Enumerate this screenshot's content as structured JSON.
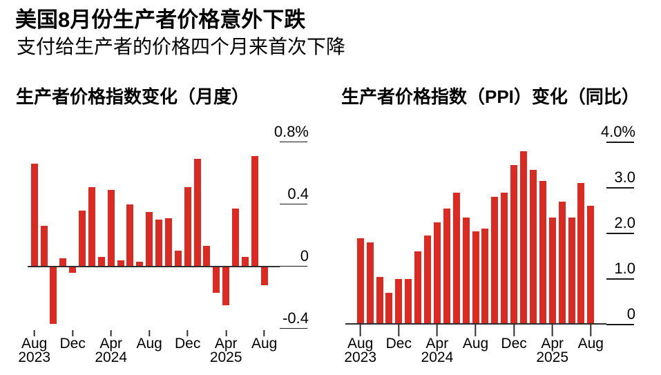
{
  "header": {
    "title": "美国8月份生产者价格意外下跌",
    "subtitle": "支付给生产者的价格四个月来首次下降"
  },
  "colors": {
    "bar": "#db2a21",
    "axis": "#2e2e2e",
    "text": "#000000",
    "background": "#ffffff"
  },
  "chart_data": [
    {
      "type": "bar",
      "title": "生产者价格指数变化（月度）",
      "unit": "%",
      "categories": [
        "Aug 2023",
        "Sep 2023",
        "Oct 2023",
        "Nov 2023",
        "Dec 2023",
        "Jan 2024",
        "Feb 2024",
        "Mar 2024",
        "Apr 2024",
        "May 2024",
        "Jun 2024",
        "Jul 2024",
        "Aug 2024",
        "Sep 2024",
        "Oct 2024",
        "Nov 2024",
        "Dec 2024",
        "Jan 2025",
        "Feb 2025",
        "Mar 2025",
        "Apr 2025",
        "May 2025",
        "Jun 2025",
        "Jul 2025",
        "Aug 2025"
      ],
      "values": [
        0.66,
        0.26,
        -0.37,
        0.05,
        -0.04,
        0.36,
        0.51,
        0.06,
        0.49,
        0.04,
        0.4,
        0.03,
        0.35,
        0.3,
        0.31,
        0.1,
        0.51,
        0.69,
        0.13,
        -0.17,
        -0.25,
        0.37,
        0.06,
        0.71,
        -0.12
      ],
      "ylim": [
        -0.42,
        0.96
      ],
      "yticks": [
        {
          "value": 0.8,
          "label": "0.8%"
        },
        {
          "value": 0.4,
          "label": "0.4"
        },
        {
          "value": 0,
          "label": "0"
        },
        {
          "value": -0.4,
          "label": "-0.4"
        }
      ],
      "xticks": [
        {
          "index": 0,
          "label": "Aug",
          "year": "2023"
        },
        {
          "index": 4,
          "label": "Dec"
        },
        {
          "index": 8,
          "label": "Apr",
          "year": "2024"
        },
        {
          "index": 12,
          "label": "Aug"
        },
        {
          "index": 16,
          "label": "Dec"
        },
        {
          "index": 20,
          "label": "Apr",
          "year": "2025"
        },
        {
          "index": 24,
          "label": "Aug"
        }
      ],
      "grid": false,
      "legend": null,
      "axis_side": "right"
    },
    {
      "type": "bar",
      "title": "生产者价格指数（PPI）变化（同比）",
      "unit": "%",
      "categories": [
        "Aug 2023",
        "Sep 2023",
        "Oct 2023",
        "Nov 2023",
        "Dec 2023",
        "Jan 2024",
        "Feb 2024",
        "Mar 2024",
        "Apr 2024",
        "May 2024",
        "Jun 2024",
        "Jul 2024",
        "Aug 2024",
        "Sep 2024",
        "Oct 2024",
        "Nov 2024",
        "Dec 2024",
        "Jan 2025",
        "Feb 2025",
        "Mar 2025",
        "Apr 2025",
        "May 2025",
        "Jun 2025",
        "Jul 2025",
        "Aug 2025"
      ],
      "values": [
        1.9,
        1.8,
        1.05,
        0.7,
        1.0,
        1.0,
        1.6,
        1.95,
        2.25,
        2.55,
        2.9,
        2.35,
        2.05,
        2.1,
        2.8,
        2.9,
        3.5,
        3.8,
        3.4,
        3.15,
        2.35,
        2.7,
        2.35,
        3.1,
        2.6
      ],
      "ylim": [
        0,
        4.56
      ],
      "yticks": [
        {
          "value": 4.0,
          "label": "4.0%"
        },
        {
          "value": 3.0,
          "label": "3.0"
        },
        {
          "value": 2.0,
          "label": "2.0"
        },
        {
          "value": 1.0,
          "label": "1.0"
        },
        {
          "value": 0,
          "label": "0"
        }
      ],
      "xticks": [
        {
          "index": 0,
          "label": "Aug",
          "year": "2023"
        },
        {
          "index": 4,
          "label": "Dec"
        },
        {
          "index": 8,
          "label": "Apr",
          "year": "2024"
        },
        {
          "index": 12,
          "label": "Aug"
        },
        {
          "index": 16,
          "label": "Dec"
        },
        {
          "index": 20,
          "label": "Apr",
          "year": "2025"
        },
        {
          "index": 24,
          "label": "Aug"
        }
      ],
      "grid": false,
      "legend": null,
      "axis_side": "right"
    }
  ]
}
